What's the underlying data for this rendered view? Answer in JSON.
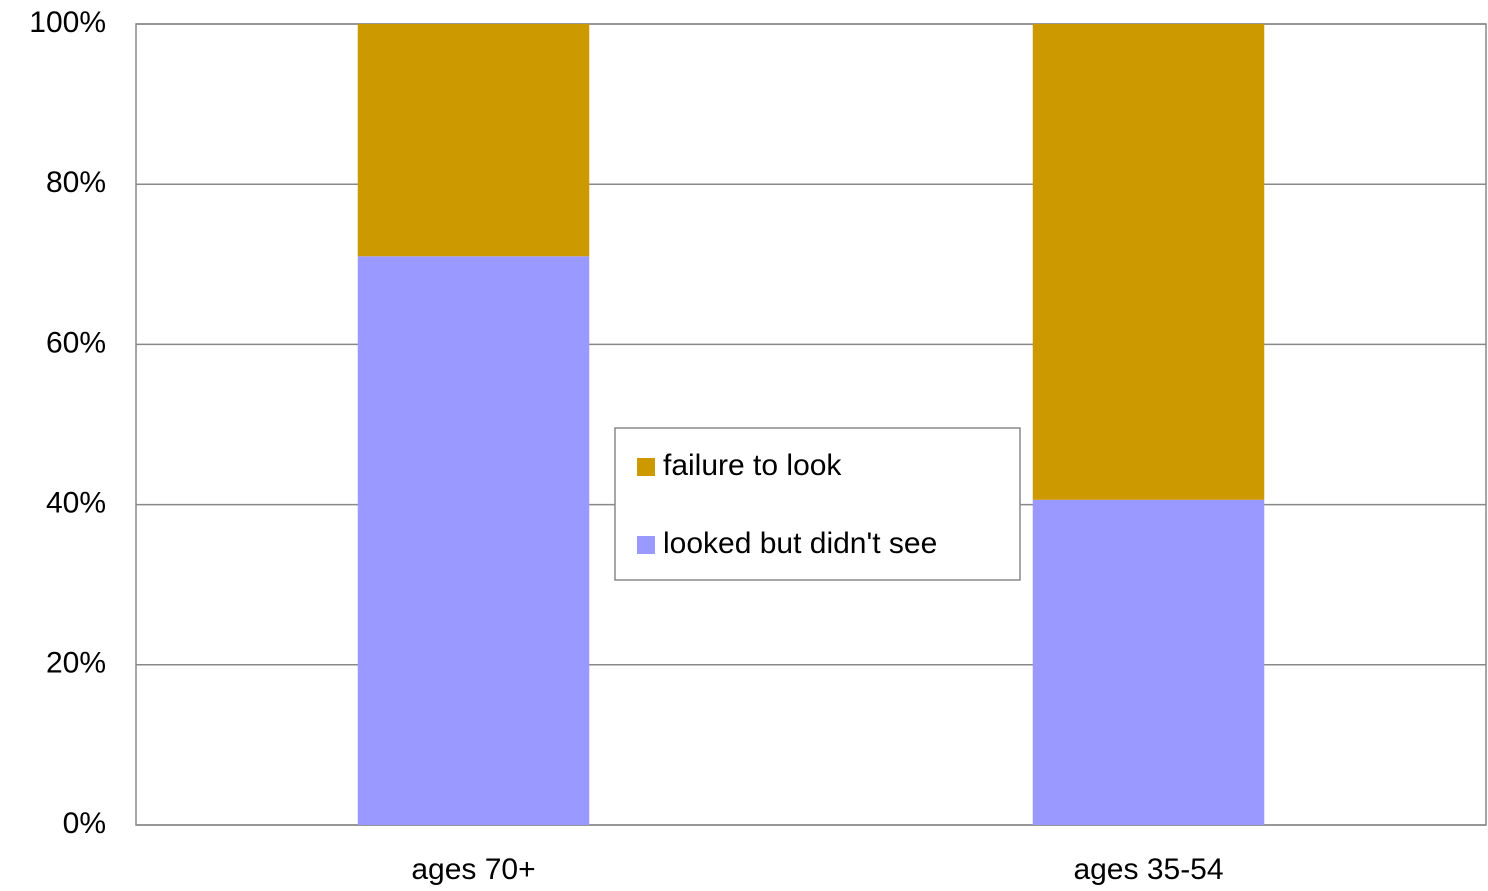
{
  "chart_data": {
    "type": "stacked_bar",
    "categories": [
      "ages 70+",
      "ages 35-54"
    ],
    "series": [
      {
        "name": "looked but didn't see",
        "color": "#9999ff",
        "values": [
          71,
          40.6
        ]
      },
      {
        "name": "failure to look",
        "color": "#cc9900",
        "values": [
          29,
          59.4
        ]
      }
    ],
    "ylim": [
      0,
      100
    ],
    "yticks": [
      {
        "value": 0,
        "label": "0%"
      },
      {
        "value": 20,
        "label": "20%"
      },
      {
        "value": 40,
        "label": "40%"
      },
      {
        "value": 60,
        "label": "60%"
      },
      {
        "value": 80,
        "label": "80%"
      },
      {
        "value": 100,
        "label": "100%"
      }
    ],
    "grid": true,
    "legend": "center"
  }
}
